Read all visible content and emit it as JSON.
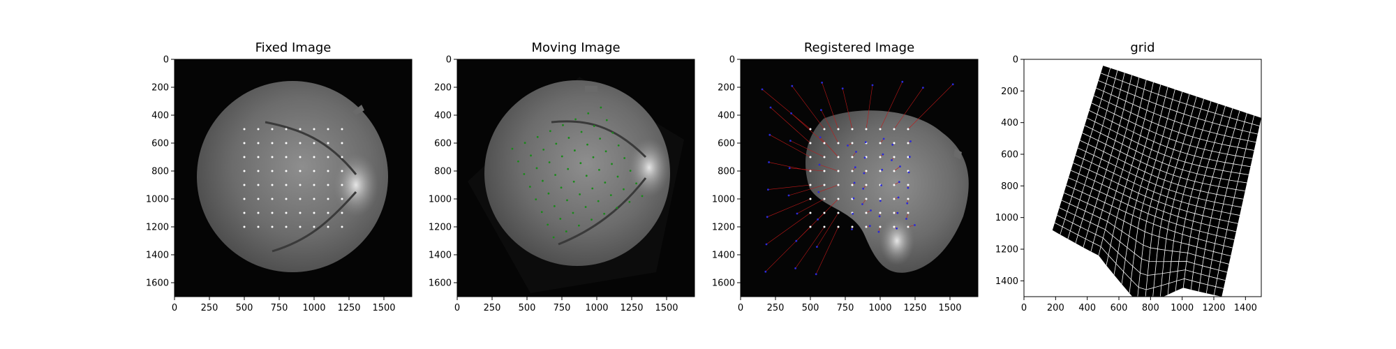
{
  "figure": {
    "panels": [
      {
        "title": "Fixed Image",
        "xticks": [
          "0",
          "250",
          "500",
          "750",
          "1000",
          "1250",
          "1500"
        ],
        "yticks": [
          "0",
          "200",
          "400",
          "600",
          "800",
          "1000",
          "1200",
          "1400",
          "1600"
        ]
      },
      {
        "title": "Moving Image",
        "xticks": [
          "0",
          "250",
          "500",
          "750",
          "1000",
          "1250",
          "1500"
        ],
        "yticks": [
          "0",
          "200",
          "400",
          "600",
          "800",
          "1000",
          "1200",
          "1400",
          "1600"
        ]
      },
      {
        "title": "Registered Image",
        "xticks": [
          "0",
          "250",
          "500",
          "750",
          "1000",
          "1250",
          "1500"
        ],
        "yticks": [
          "0",
          "200",
          "400",
          "600",
          "800",
          "1000",
          "1200",
          "1400",
          "1600"
        ]
      },
      {
        "title": "grid",
        "xticks": [
          "0",
          "200",
          "400",
          "600",
          "800",
          "1000",
          "1200",
          "1400"
        ],
        "yticks": [
          "0",
          "200",
          "400",
          "600",
          "800",
          "1000",
          "1200",
          "1400"
        ]
      }
    ]
  },
  "colors": {
    "fixed_points": "#ffffff",
    "moving_points": "#1a8a1a",
    "registered_points": "#2a2ad8",
    "displacement_lines": "#c01818",
    "grid_lines": "#ffffff",
    "background": "#000000"
  }
}
